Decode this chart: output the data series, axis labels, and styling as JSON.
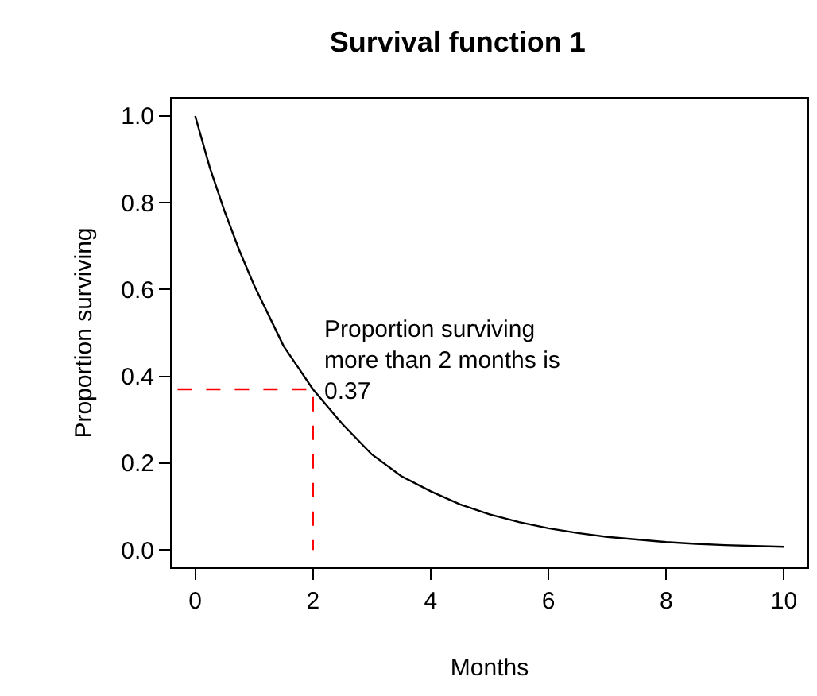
{
  "chart_data": {
    "type": "line",
    "title": "Survival function 1",
    "xlabel": "Months",
    "ylabel": "Proportion surviving",
    "xlim": [
      -0.4,
      10.4
    ],
    "ylim": [
      -0.04,
      1.04
    ],
    "xticks": [
      0,
      2,
      4,
      6,
      8,
      10
    ],
    "yticks": [
      {
        "value": 0,
        "label": "0.0"
      },
      {
        "value": 0.2,
        "label": "0.2"
      },
      {
        "value": 0.4,
        "label": "0.4"
      },
      {
        "value": 0.6,
        "label": "0.6"
      },
      {
        "value": 0.8,
        "label": "0.8"
      },
      {
        "value": 1,
        "label": "1.0"
      }
    ],
    "grid": false,
    "marker": "none",
    "series": [
      {
        "color": "#000000",
        "x": [
          0,
          0.25,
          0.5,
          0.75,
          1,
          1.25,
          1.5,
          1.75,
          2,
          2.5,
          3,
          3.5,
          4,
          4.5,
          5,
          5.5,
          6,
          6.5,
          7,
          7.5,
          8,
          8.5,
          9,
          9.5,
          10
        ],
        "values": [
          1,
          0.88,
          0.78,
          0.69,
          0.61,
          0.54,
          0.47,
          0.42,
          0.37,
          0.29,
          0.22,
          0.17,
          0.135,
          0.105,
          0.082,
          0.064,
          0.05,
          0.039,
          0.03,
          0.024,
          0.018,
          0.014,
          0.011,
          0.009,
          0.007
        ]
      },
      {
        "color": "#ff0000",
        "line_style": "dashed",
        "x": [
          -0.3,
          2,
          2
        ],
        "values": [
          0.37,
          0.37,
          0
        ]
      }
    ],
    "annotations": [
      {
        "text": "Proportion surviving\nmore than 2 months is\n0.37",
        "x": 2,
        "y": 0.37
      }
    ]
  }
}
